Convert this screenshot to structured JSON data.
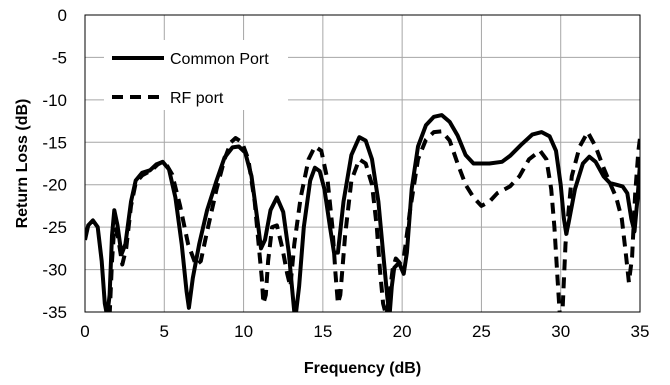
{
  "chart_data": {
    "type": "line",
    "title": "",
    "xlabel": "Frequency (dB)",
    "ylabel": "Return Loss (dB)",
    "xlim": [
      0,
      35
    ],
    "ylim": [
      -35,
      0
    ],
    "xticks": [
      0,
      5,
      10,
      15,
      20,
      25,
      30,
      35
    ],
    "yticks": [
      0,
      -5,
      -10,
      -15,
      -20,
      -25,
      -30,
      -35
    ],
    "xtick_labels": [
      "0",
      "5",
      "10",
      "15",
      "20",
      "25",
      "30",
      "35"
    ],
    "ytick_labels": [
      "0",
      "-5",
      "-10",
      "-15",
      "-20",
      "-25",
      "-30",
      "-35"
    ],
    "grid": true,
    "legend_position": "top-left",
    "series": [
      {
        "name": "Common Port",
        "style": "solid",
        "color": "#000000",
        "points": [
          [
            0,
            -26.5
          ],
          [
            0.2,
            -24.8
          ],
          [
            0.5,
            -24.2
          ],
          [
            0.8,
            -25.0
          ],
          [
            1.05,
            -29.0
          ],
          [
            1.25,
            -34.0
          ],
          [
            1.4,
            -35.5
          ],
          [
            1.55,
            -33.0
          ],
          [
            1.7,
            -26.0
          ],
          [
            1.85,
            -23.0
          ],
          [
            2.05,
            -24.8
          ],
          [
            2.3,
            -28.2
          ],
          [
            2.55,
            -27.0
          ],
          [
            2.9,
            -22.0
          ],
          [
            3.2,
            -19.5
          ],
          [
            3.6,
            -18.6
          ],
          [
            4.1,
            -18.3
          ],
          [
            4.5,
            -17.6
          ],
          [
            4.9,
            -17.3
          ],
          [
            5.3,
            -18.2
          ],
          [
            5.7,
            -21.5
          ],
          [
            6.1,
            -27.0
          ],
          [
            6.4,
            -32.5
          ],
          [
            6.55,
            -34.5
          ],
          [
            6.8,
            -31.0
          ],
          [
            7.2,
            -27.0
          ],
          [
            7.7,
            -23.0
          ],
          [
            8.3,
            -19.5
          ],
          [
            8.8,
            -16.8
          ],
          [
            9.3,
            -15.6
          ],
          [
            9.7,
            -15.5
          ],
          [
            10.1,
            -16.2
          ],
          [
            10.5,
            -19.0
          ],
          [
            10.9,
            -24.5
          ],
          [
            11.1,
            -27.5
          ],
          [
            11.35,
            -26.5
          ],
          [
            11.7,
            -23.0
          ],
          [
            12.1,
            -21.5
          ],
          [
            12.5,
            -23.2
          ],
          [
            12.85,
            -28.0
          ],
          [
            13.1,
            -33.0
          ],
          [
            13.25,
            -36.0
          ],
          [
            13.5,
            -32.0
          ],
          [
            13.8,
            -25.0
          ],
          [
            14.2,
            -19.5
          ],
          [
            14.5,
            -18.0
          ],
          [
            14.8,
            -18.4
          ],
          [
            15.1,
            -20.5
          ],
          [
            15.45,
            -25.0
          ],
          [
            15.7,
            -28.0
          ],
          [
            15.95,
            -28.0
          ],
          [
            16.3,
            -22.0
          ],
          [
            16.8,
            -16.5
          ],
          [
            17.3,
            -14.4
          ],
          [
            17.7,
            -14.8
          ],
          [
            18.1,
            -17.0
          ],
          [
            18.5,
            -22.0
          ],
          [
            18.8,
            -28.0
          ],
          [
            19.05,
            -33.0
          ],
          [
            19.2,
            -35.5
          ],
          [
            19.35,
            -32.0
          ],
          [
            19.5,
            -29.8
          ],
          [
            19.8,
            -29.2
          ],
          [
            20.1,
            -30.5
          ],
          [
            20.3,
            -28.0
          ],
          [
            20.6,
            -20.5
          ],
          [
            21.0,
            -15.5
          ],
          [
            21.5,
            -13.0
          ],
          [
            22.0,
            -12.0
          ],
          [
            22.5,
            -11.8
          ],
          [
            23.0,
            -12.6
          ],
          [
            23.5,
            -14.2
          ],
          [
            24.0,
            -16.5
          ],
          [
            24.5,
            -17.5
          ],
          [
            25.5,
            -17.5
          ],
          [
            26.3,
            -17.3
          ],
          [
            26.8,
            -16.6
          ],
          [
            27.5,
            -15.3
          ],
          [
            28.2,
            -14.1
          ],
          [
            28.8,
            -13.8
          ],
          [
            29.3,
            -14.3
          ],
          [
            29.7,
            -16.0
          ],
          [
            30.0,
            -20.0
          ],
          [
            30.2,
            -24.0
          ],
          [
            30.35,
            -25.8
          ],
          [
            30.5,
            -24.5
          ],
          [
            30.9,
            -20.5
          ],
          [
            31.4,
            -17.5
          ],
          [
            31.8,
            -16.7
          ],
          [
            32.2,
            -17.3
          ],
          [
            32.7,
            -19.0
          ],
          [
            33.1,
            -19.8
          ],
          [
            33.5,
            -20.0
          ],
          [
            33.9,
            -20.2
          ],
          [
            34.2,
            -21.0
          ],
          [
            34.45,
            -24.0
          ],
          [
            34.65,
            -25.5
          ],
          [
            34.85,
            -21.5
          ],
          [
            35.0,
            -17.5
          ]
        ]
      },
      {
        "name": "RF port",
        "style": "dashed",
        "color": "#000000",
        "points": [
          [
            1.55,
            -35.5
          ],
          [
            1.7,
            -29.0
          ],
          [
            1.85,
            -25.0
          ],
          [
            2.05,
            -25.8
          ],
          [
            2.35,
            -29.4
          ],
          [
            2.6,
            -27.5
          ],
          [
            2.9,
            -22.5
          ],
          [
            3.2,
            -19.8
          ],
          [
            3.6,
            -18.9
          ],
          [
            4.2,
            -18.3
          ],
          [
            4.6,
            -17.6
          ],
          [
            5.0,
            -17.2
          ],
          [
            5.5,
            -18.8
          ],
          [
            6.0,
            -22.5
          ],
          [
            6.5,
            -27.0
          ],
          [
            7.0,
            -29.5
          ],
          [
            7.3,
            -29.0
          ],
          [
            7.7,
            -25.5
          ],
          [
            8.3,
            -20.5
          ],
          [
            8.8,
            -17.0
          ],
          [
            9.2,
            -15.0
          ],
          [
            9.5,
            -14.5
          ],
          [
            9.9,
            -15.0
          ],
          [
            10.3,
            -17.0
          ],
          [
            10.7,
            -22.0
          ],
          [
            11.0,
            -28.0
          ],
          [
            11.15,
            -31.0
          ],
          [
            11.25,
            -34.0
          ],
          [
            11.4,
            -33.0
          ],
          [
            11.55,
            -29.0
          ],
          [
            11.8,
            -25.0
          ],
          [
            12.1,
            -24.8
          ],
          [
            12.45,
            -27.5
          ],
          [
            12.75,
            -30.5
          ],
          [
            12.95,
            -32.0
          ],
          [
            13.2,
            -27.0
          ],
          [
            13.6,
            -21.5
          ],
          [
            14.1,
            -17.0
          ],
          [
            14.5,
            -15.5
          ],
          [
            14.9,
            -16.0
          ],
          [
            15.3,
            -19.5
          ],
          [
            15.6,
            -25.0
          ],
          [
            15.8,
            -30.5
          ],
          [
            15.95,
            -34.0
          ],
          [
            16.1,
            -33.0
          ],
          [
            16.4,
            -26.0
          ],
          [
            16.8,
            -19.5
          ],
          [
            17.3,
            -17.0
          ],
          [
            17.7,
            -17.5
          ],
          [
            18.1,
            -20.0
          ],
          [
            18.4,
            -25.0
          ],
          [
            18.6,
            -30.0
          ],
          [
            18.8,
            -34.0
          ],
          [
            19.0,
            -35.5
          ],
          [
            19.2,
            -33.0
          ],
          [
            19.4,
            -30.0
          ],
          [
            19.6,
            -28.7
          ],
          [
            19.85,
            -29.2
          ],
          [
            20.1,
            -28.7
          ],
          [
            20.5,
            -23.0
          ],
          [
            21.0,
            -17.0
          ],
          [
            21.5,
            -14.7
          ],
          [
            22.0,
            -13.8
          ],
          [
            22.5,
            -13.7
          ],
          [
            23.0,
            -14.8
          ],
          [
            23.5,
            -17.5
          ],
          [
            24.0,
            -20.0
          ],
          [
            24.5,
            -21.5
          ],
          [
            25.0,
            -22.5
          ],
          [
            25.5,
            -22.0
          ],
          [
            26.0,
            -21.0
          ],
          [
            26.8,
            -20.2
          ],
          [
            27.4,
            -19.0
          ],
          [
            28.0,
            -17.0
          ],
          [
            28.7,
            -16.0
          ],
          [
            29.1,
            -17.0
          ],
          [
            29.4,
            -20.5
          ],
          [
            29.6,
            -25.0
          ],
          [
            29.8,
            -31.0
          ],
          [
            29.95,
            -35.5
          ],
          [
            30.1,
            -35.5
          ],
          [
            30.3,
            -27.0
          ],
          [
            30.7,
            -19.0
          ],
          [
            31.2,
            -15.5
          ],
          [
            31.7,
            -13.8
          ],
          [
            32.2,
            -15.5
          ],
          [
            32.7,
            -18.0
          ],
          [
            33.1,
            -19.8
          ],
          [
            33.5,
            -21.5
          ],
          [
            33.85,
            -24.0
          ],
          [
            34.1,
            -28.0
          ],
          [
            34.3,
            -31.5
          ],
          [
            34.5,
            -28.5
          ],
          [
            34.7,
            -21.0
          ],
          [
            34.9,
            -16.0
          ],
          [
            35.0,
            -14.5
          ]
        ]
      }
    ]
  }
}
